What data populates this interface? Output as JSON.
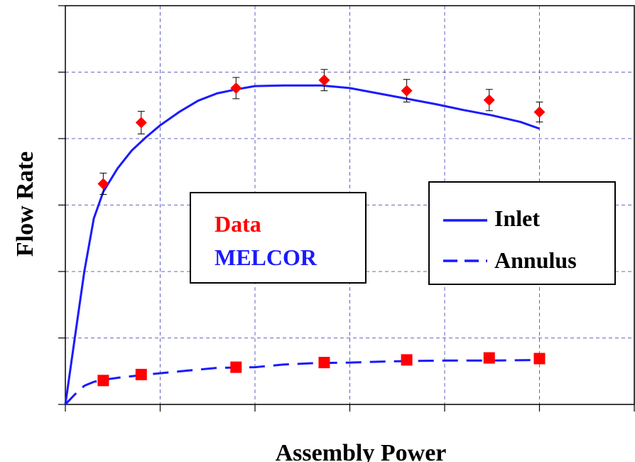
{
  "chart_data": {
    "type": "line",
    "xlabel": "Assembly Power",
    "ylabel": "Flow Rate",
    "xlim": [
      0,
      6
    ],
    "ylim": [
      0,
      6
    ],
    "grid": true,
    "tick_labels_shown": false,
    "markers": [
      {
        "name": "Data",
        "marker": "diamond",
        "color": "#ff0000",
        "x": [
          0.4,
          0.8,
          1.8,
          2.73,
          3.6,
          4.47,
          5.0
        ],
        "y": [
          3.32,
          4.24,
          4.76,
          4.88,
          4.72,
          4.58,
          4.4
        ],
        "error": [
          0.16,
          0.17,
          0.16,
          0.16,
          0.17,
          0.16,
          0.15
        ]
      },
      {
        "name": "Data",
        "marker": "square",
        "color": "#ff0000",
        "x": [
          0.4,
          0.8,
          1.8,
          2.73,
          3.6,
          4.47,
          5.0
        ],
        "y": [
          0.36,
          0.45,
          0.56,
          0.63,
          0.67,
          0.7,
          0.69
        ]
      }
    ],
    "series": [
      {
        "name": "Inlet",
        "style": "solid",
        "color": "#1a1aff",
        "x": [
          0,
          0.1,
          0.2,
          0.3,
          0.4,
          0.55,
          0.7,
          0.85,
          1.0,
          1.2,
          1.4,
          1.6,
          1.8,
          2.0,
          2.3,
          2.7,
          3.0,
          3.3,
          3.6,
          3.9,
          4.2,
          4.5,
          4.8,
          5.0
        ],
        "y": [
          0,
          1.0,
          2.0,
          2.8,
          3.2,
          3.55,
          3.82,
          4.02,
          4.2,
          4.4,
          4.57,
          4.68,
          4.74,
          4.79,
          4.8,
          4.8,
          4.76,
          4.68,
          4.6,
          4.52,
          4.43,
          4.35,
          4.25,
          4.15
        ]
      },
      {
        "name": "Annulus",
        "style": "dashed",
        "color": "#1a1aff",
        "x": [
          0,
          0.1,
          0.2,
          0.3,
          0.4,
          0.6,
          0.8,
          1.0,
          1.3,
          1.6,
          2.0,
          2.3,
          2.6,
          3.0,
          3.5,
          4.0,
          4.5,
          5.0
        ],
        "y": [
          0,
          0.15,
          0.28,
          0.34,
          0.37,
          0.41,
          0.44,
          0.47,
          0.51,
          0.55,
          0.56,
          0.6,
          0.62,
          0.63,
          0.65,
          0.66,
          0.66,
          0.67
        ]
      }
    ]
  },
  "legend_type": {
    "items": [
      {
        "label": "Data",
        "color": "#ff0000"
      },
      {
        "label": "MELCOR",
        "color": "#1a1aff"
      }
    ]
  },
  "legend_lines": {
    "items": [
      {
        "label": "Inlet",
        "style": "solid"
      },
      {
        "label": "Annulus",
        "style": "dashed"
      }
    ]
  }
}
